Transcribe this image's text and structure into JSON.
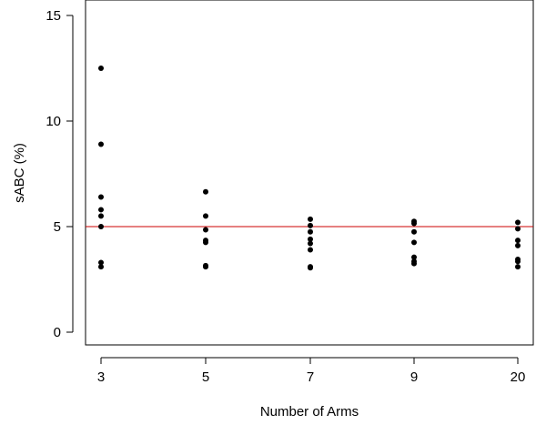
{
  "chart_data": {
    "type": "scatter",
    "title": "",
    "xlabel": "Number of Arms",
    "ylabel": "sABC (%)",
    "categories": [
      "3",
      "5",
      "7",
      "9",
      "20"
    ],
    "yticks": [
      0,
      5,
      10,
      15
    ],
    "ylim": [
      -0.5,
      15.5
    ],
    "grid": false,
    "reference_line": {
      "y": 5,
      "color": "#cc0000"
    },
    "point_color": "#000000",
    "series": [
      {
        "values": [
          [
            12.5,
            8.9,
            6.4,
            5.8,
            5.5,
            5.0,
            3.3,
            3.1
          ],
          [
            6.65,
            5.5,
            4.85,
            4.35,
            4.25,
            3.15,
            3.1
          ],
          [
            5.35,
            5.05,
            4.75,
            4.4,
            4.2,
            3.9,
            3.1,
            3.05
          ],
          [
            5.25,
            5.15,
            4.75,
            4.25,
            3.55,
            3.35,
            3.25
          ],
          [
            5.2,
            4.9,
            4.35,
            4.1,
            3.45,
            3.35,
            3.1
          ]
        ]
      }
    ]
  }
}
